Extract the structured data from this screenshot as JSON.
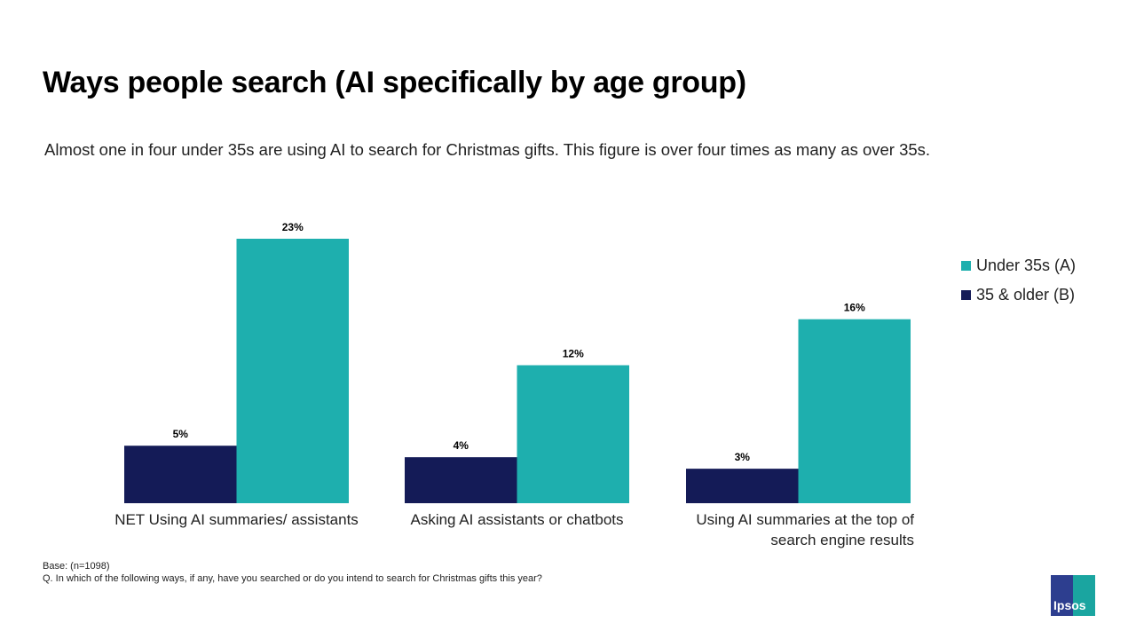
{
  "chart_data": {
    "type": "bar",
    "title": "Ways people search (AI specifically by age group)",
    "subtitle": "Almost one in four under 35s are using AI to search for Christmas gifts. This figure is over four times as many as over 35s.",
    "categories": [
      "NET Using AI summaries/ assistants",
      "Asking AI assistants or chatbots",
      "Using AI summaries at the top of search engine results"
    ],
    "series": [
      {
        "name": "35 & older (B)",
        "values": [
          5,
          4,
          3
        ],
        "color": "#141b57"
      },
      {
        "name": "Under 35s (A)",
        "values": [
          23,
          12,
          16
        ],
        "color": "#1eafae"
      }
    ],
    "value_suffix": "%",
    "ylim": [
      0,
      25
    ],
    "grid": false,
    "legend_position": "right"
  },
  "footer": {
    "base": "Base:  (n=1098)",
    "question": "Q. In which of the following ways, if any, have you searched or do you intend to search for Christmas gifts this year?"
  },
  "logo": {
    "text": "Ipsos"
  }
}
